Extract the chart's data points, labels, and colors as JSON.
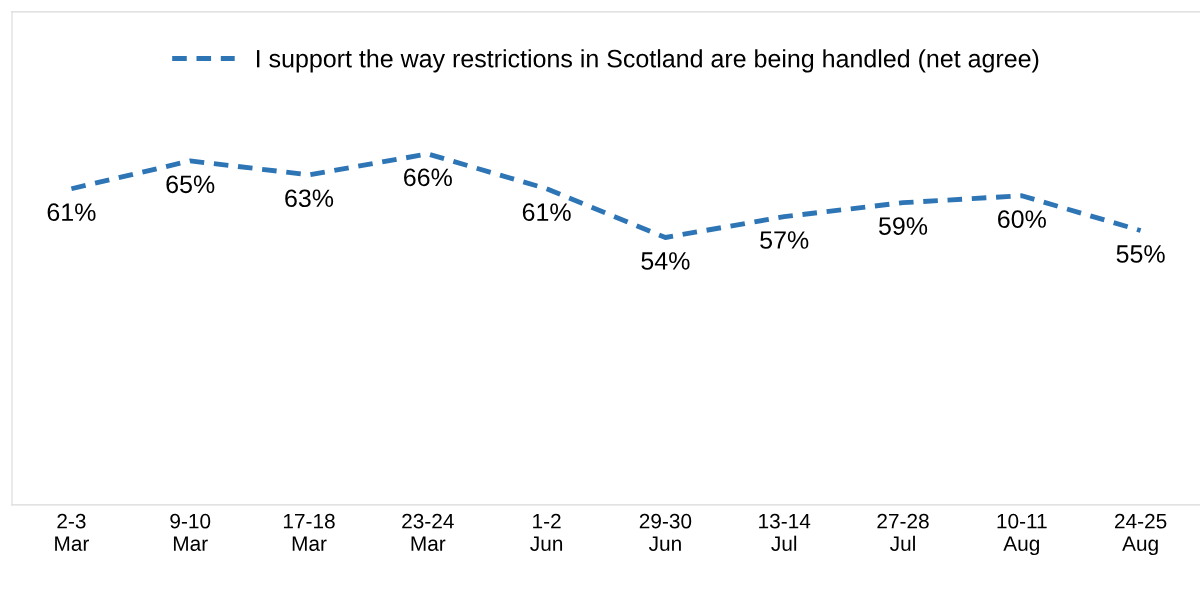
{
  "chart_data": {
    "type": "line",
    "categories": [
      "2-3\nMar",
      "9-10\nMar",
      "17-18\nMar",
      "23-24\nMar",
      "1-2\nJun",
      "29-30\nJun",
      "13-14\nJul",
      "27-28\nJul",
      "10-11\nAug",
      "24-25\nAug"
    ],
    "series": [
      {
        "name": "I support the way restrictions in Scotland are being handled (net agree)",
        "color": "#2e75b6",
        "values": [
          61,
          65,
          63,
          66,
          61,
          54,
          57,
          59,
          60,
          55
        ],
        "value_labels": [
          "61%",
          "65%",
          "63%",
          "66%",
          "61%",
          "54%",
          "57%",
          "59%",
          "60%",
          "55%"
        ]
      }
    ],
    "line_style": "dashed",
    "marker": "none",
    "grid": false,
    "legend": "top",
    "tick_labels": "x"
  }
}
